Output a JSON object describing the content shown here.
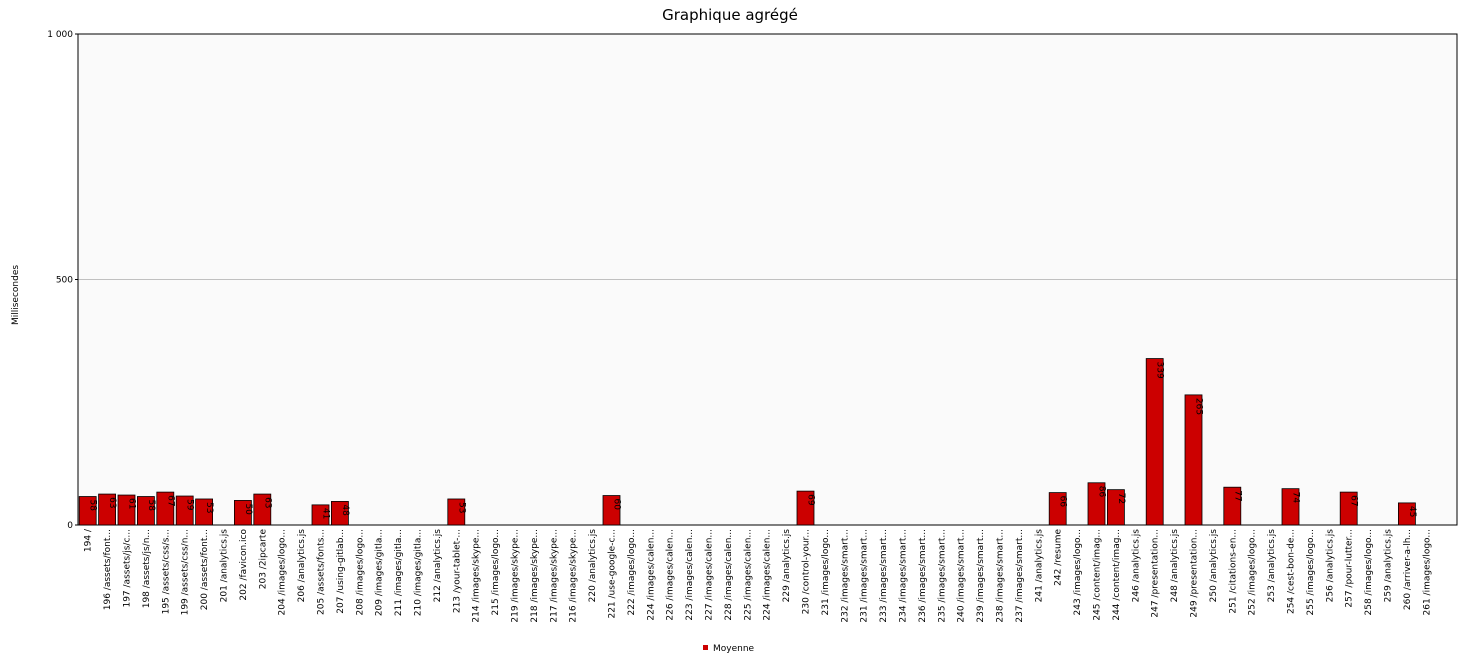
{
  "chart_data": {
    "type": "bar",
    "title": "Graphique agrégé",
    "y_label": "Millisecondes",
    "color": "#cc0000",
    "categories": [
      "194 /",
      "196 /assets/font...",
      "197 /assets/js/c...",
      "198 /assets/js/n...",
      "195 /assets/css/s...",
      "199 /assets/css/n...",
      "200 /assets/font...",
      "201 /analytics.js",
      "202 /favicon.ico",
      "203 /2ipcarte",
      "204 /images/logo...",
      "206 /analytics.js",
      "205 /assets/fonts...",
      "207 /using-gitlab...",
      "208 /images/logo...",
      "209 /images/gitla...",
      "211 /images/gitla...",
      "210 /images/gitla...",
      "212 /analytics.js",
      "213 /your-tablet-...",
      "214 /images/skype...",
      "215 /images/logo...",
      "219 /images/skype...",
      "218 /images/skype...",
      "217 /images/skype...",
      "216 /images/skype...",
      "220 /analytics.js",
      "221 /use-google-c...",
      "222 /images/logo...",
      "224 /images/calen...",
      "226 /images/calen...",
      "223 /images/calen...",
      "227 /images/calen...",
      "228 /images/calen...",
      "225 /images/calen...",
      "224 /images/calen...",
      "229 /analytics.js",
      "230 /control-your...",
      "231 /images/logo...",
      "232 /images/smart...",
      "231 /images/smart...",
      "233 /images/smart...",
      "234 /images/smart...",
      "236 /images/smart...",
      "235 /images/smart...",
      "240 /images/smart...",
      "239 /images/smart...",
      "238 /images/smart...",
      "237 /images/smart...",
      "241 /analytics.js",
      "242 /resume",
      "243 /images/logo...",
      "245 /content/imag...",
      "244 /content/imag...",
      "246 /analytics.js",
      "247 /presentation...",
      "248 /analytics.js",
      "249 /presentation...",
      "250 /analytics.js",
      "251 /citations-en...",
      "252 /images/logo...",
      "253 /analytics.js",
      "254 /cest-bon-de...",
      "255 /images/logo...",
      "256 /analytics.js",
      "257 /pour-lutter...",
      "258 /images/logo...",
      "259 /analytics.js",
      "260 /arriver-a-lh...",
      "261 /images/logo..."
    ],
    "series": [
      {
        "name": "Moyenne",
        "color": "#cc0000",
        "values": [
          58,
          63,
          61,
          58,
          67,
          59,
          53,
          null,
          50,
          63,
          null,
          null,
          41,
          48,
          null,
          null,
          null,
          null,
          null,
          53,
          null,
          null,
          null,
          null,
          null,
          null,
          null,
          60,
          null,
          null,
          null,
          null,
          null,
          null,
          null,
          null,
          null,
          69,
          null,
          null,
          null,
          null,
          null,
          null,
          null,
          null,
          null,
          null,
          null,
          null,
          66,
          null,
          86,
          72,
          null,
          339,
          null,
          265,
          null,
          77,
          null,
          null,
          74,
          null,
          null,
          67,
          null,
          null,
          45,
          null
        ]
      }
    ],
    "ylim": [
      0,
      1000
    ],
    "yticks": [
      0,
      500,
      {
        "value": 1000,
        "label": "1 000"
      }
    ],
    "grid": true
  }
}
